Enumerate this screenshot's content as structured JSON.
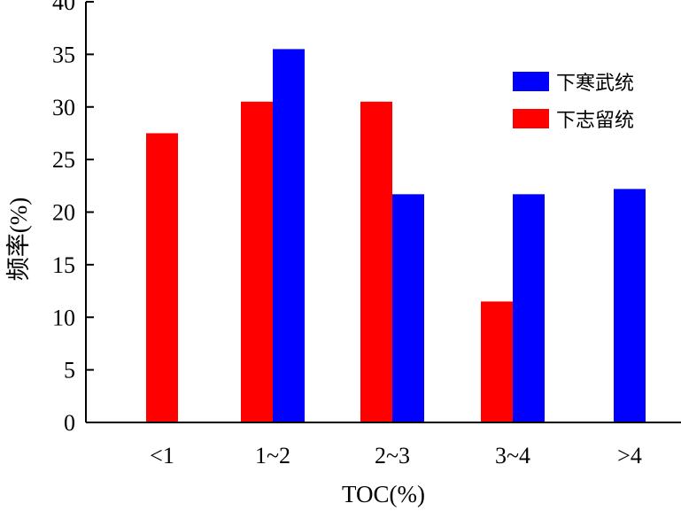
{
  "chart_data": {
    "type": "bar",
    "categories": [
      "<1",
      "1~2",
      "2~3",
      "3~4",
      ">4"
    ],
    "series": [
      {
        "name": "下志留统",
        "color": "#ff0000",
        "values": [
          27.5,
          30.5,
          30.5,
          11.5,
          null
        ]
      },
      {
        "name": "下寒武统",
        "color": "#0000ff",
        "values": [
          null,
          35.5,
          21.7,
          21.7,
          22.2
        ]
      }
    ],
    "xlabel": "TOC(%)",
    "ylabel": "频率(%)",
    "ylim": [
      0,
      40
    ],
    "yticks": [
      0,
      5,
      10,
      15,
      20,
      25,
      30,
      35,
      40
    ],
    "grid": false,
    "legend": {
      "position": "top-right",
      "entries": [
        "下寒武统",
        "下志留统"
      ]
    }
  }
}
